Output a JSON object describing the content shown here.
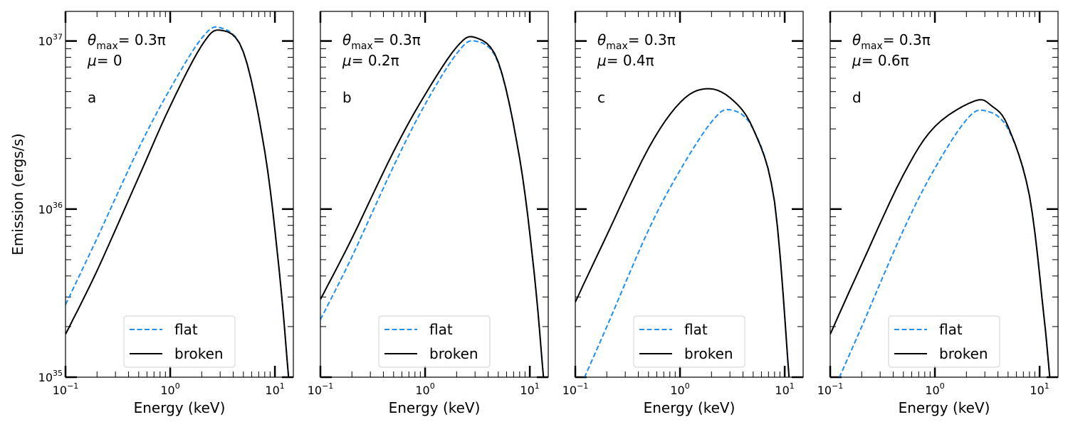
{
  "figure": {
    "ylabel": "Emission (ergs/s)",
    "xlabel": "Energy (keV)",
    "x_tick_labels": [
      {
        "base": "10",
        "exp": "−1"
      },
      {
        "base": "10",
        "exp": "0"
      },
      {
        "base": "10",
        "exp": "1"
      }
    ],
    "y_tick_labels": [
      {
        "base": "10",
        "exp": "35"
      },
      {
        "base": "10",
        "exp": "36"
      },
      {
        "base": "10",
        "exp": "37"
      }
    ]
  },
  "chart_data": [
    {
      "type": "line",
      "panel_label": "a",
      "theta_text": "= 0.3π",
      "mu_text": "= 0",
      "xlabel": "Energy (keV)",
      "ylabel": "Emission (ergs/s)",
      "xscale": "log",
      "yscale": "log",
      "xlim": [
        0.1,
        15
      ],
      "ylim": [
        1e+35,
        1.5e+37
      ],
      "legend": {
        "location": "lower center",
        "entries": [
          "flat",
          "broken"
        ]
      },
      "series": [
        {
          "name": "flat",
          "color": "#1f8ff0",
          "style": "dashed",
          "x": [
            0.1,
            0.2,
            0.5,
            1.0,
            2.0,
            3.0,
            5.0,
            8.0,
            11.0,
            13.5
          ],
          "y": [
            2.7e+35,
            6.7e+35,
            2.3e+36,
            5.2e+36,
            1.04e+37,
            1.2e+37,
            8.6e+36,
            2.2e+36,
            4.3e+35,
            1e+35
          ]
        },
        {
          "name": "broken",
          "color": "#000000",
          "style": "solid",
          "x": [
            0.1,
            0.2,
            0.5,
            1.0,
            2.0,
            3.0,
            5.0,
            8.0,
            11.0,
            13.5
          ],
          "y": [
            1.8e+35,
            4.3e+35,
            1.55e+36,
            4.1e+36,
            9.4e+36,
            1.16e+37,
            8.6e+36,
            2.2e+36,
            4.3e+35,
            1e+35
          ]
        }
      ]
    },
    {
      "type": "line",
      "panel_label": "b",
      "theta_text": "= 0.3π",
      "mu_text": "= 0.2π",
      "xlabel": "Energy (keV)",
      "ylabel": "",
      "xscale": "log",
      "yscale": "log",
      "xlim": [
        0.1,
        15
      ],
      "ylim": [
        1e+35,
        1.5e+37
      ],
      "legend": {
        "location": "lower center",
        "entries": [
          "flat",
          "broken"
        ]
      },
      "series": [
        {
          "name": "flat",
          "color": "#1f8ff0",
          "style": "dashed",
          "x": [
            0.1,
            0.2,
            0.5,
            1.0,
            2.0,
            3.0,
            5.0,
            8.0,
            11.0,
            13.5
          ],
          "y": [
            2.2e+35,
            5.2e+35,
            1.8e+36,
            4.2e+36,
            8.4e+36,
            1e+37,
            7.4e+36,
            2e+36,
            4.2e+35,
            1e+35
          ]
        },
        {
          "name": "broken",
          "color": "#000000",
          "style": "solid",
          "x": [
            0.1,
            0.2,
            0.5,
            1.0,
            2.0,
            3.0,
            5.0,
            8.0,
            11.0,
            13.5
          ],
          "y": [
            2.9e+35,
            6.7e+35,
            2.2e+36,
            4.8e+36,
            9.2e+36,
            1.05e+37,
            7.5e+36,
            2e+36,
            4.2e+35,
            1e+35
          ]
        }
      ]
    },
    {
      "type": "line",
      "panel_label": "c",
      "theta_text": "= 0.3π",
      "mu_text": "= 0.4π",
      "xlabel": "Energy (keV)",
      "ylabel": "",
      "xscale": "log",
      "yscale": "log",
      "xlim": [
        0.1,
        15
      ],
      "ylim": [
        1e+35,
        1.5e+37
      ],
      "legend": {
        "location": "lower center",
        "entries": [
          "flat",
          "broken"
        ]
      },
      "series": [
        {
          "name": "flat",
          "color": "#1f8ff0",
          "style": "dashed",
          "x": [
            0.1,
            0.2,
            0.5,
            1.0,
            2.0,
            3.0,
            5.0,
            8.0,
            11.0
          ],
          "y": [
            7.5e+34,
            2e+35,
            7.5e+35,
            1.7e+36,
            3.3e+36,
            3.9e+36,
            3e+36,
            1.1e+36,
            1e+35
          ]
        },
        {
          "name": "broken",
          "color": "#000000",
          "style": "solid",
          "x": [
            0.1,
            0.2,
            0.5,
            1.0,
            1.75,
            3.0,
            5.0,
            8.0,
            11.0
          ],
          "y": [
            2.8e+35,
            7e+35,
            2.3e+36,
            4.3e+36,
            5.2e+36,
            4.6e+36,
            3e+36,
            1.1e+36,
            1e+35
          ]
        }
      ]
    },
    {
      "type": "line",
      "panel_label": "d",
      "theta_text": "= 0.3π",
      "mu_text": "= 0.6π",
      "xlabel": "Energy (keV)",
      "ylabel": "",
      "xscale": "log",
      "yscale": "log",
      "xlim": [
        0.1,
        15
      ],
      "ylim": [
        1e+35,
        1.5e+37
      ],
      "legend": {
        "location": "lower center",
        "entries": [
          "flat",
          "broken"
        ]
      },
      "series": [
        {
          "name": "flat",
          "color": "#1f8ff0",
          "style": "dashed",
          "x": [
            0.1,
            0.2,
            0.5,
            1.0,
            2.0,
            3.0,
            5.0,
            8.0,
            11.0,
            12.5
          ],
          "y": [
            7.5e+34,
            2e+35,
            7.5e+35,
            1.75e+36,
            3.4e+36,
            3.85e+36,
            3e+36,
            1.2e+36,
            2.3e+35,
            1e+35
          ]
        },
        {
          "name": "broken",
          "color": "#000000",
          "style": "solid",
          "x": [
            0.1,
            0.2,
            0.5,
            1.0,
            2.4,
            3.5,
            5.0,
            8.0,
            11.0,
            12.5
          ],
          "y": [
            1.8e+35,
            4.7e+35,
            1.6e+36,
            3.1e+36,
            4.4e+36,
            4.1e+36,
            3.1e+36,
            1.2e+36,
            2.3e+35,
            1e+35
          ]
        }
      ]
    }
  ]
}
